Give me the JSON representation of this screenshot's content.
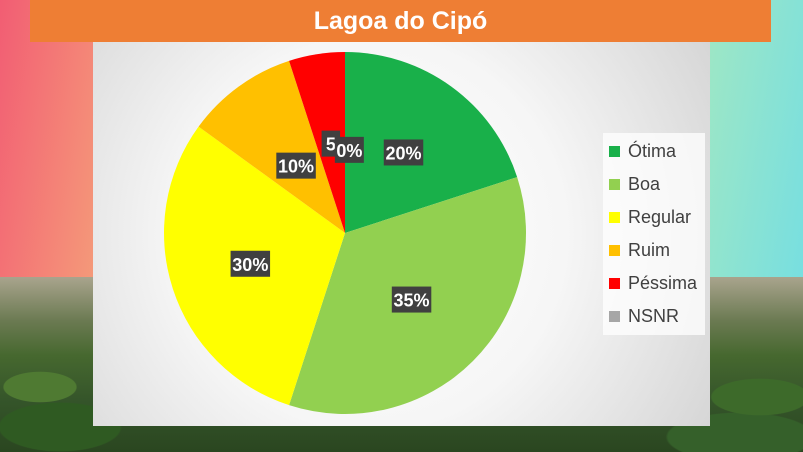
{
  "title": "Lagoa do Cipó",
  "chart_data": {
    "type": "pie",
    "start_angle_deg": 0,
    "direction": "clockwise",
    "categories": [
      "Ótima",
      "Boa",
      "Regular",
      "Ruim",
      "Péssima",
      "NSNR"
    ],
    "values": [
      20,
      35,
      30,
      10,
      5,
      0
    ],
    "labels": [
      "20%",
      "35%",
      "30%",
      "10%",
      "5",
      "0%"
    ],
    "colors": [
      "#19b04a",
      "#92d050",
      "#ffff00",
      "#ffc000",
      "#ff0000",
      "#a6a6a6"
    ],
    "legend_position": "right"
  }
}
